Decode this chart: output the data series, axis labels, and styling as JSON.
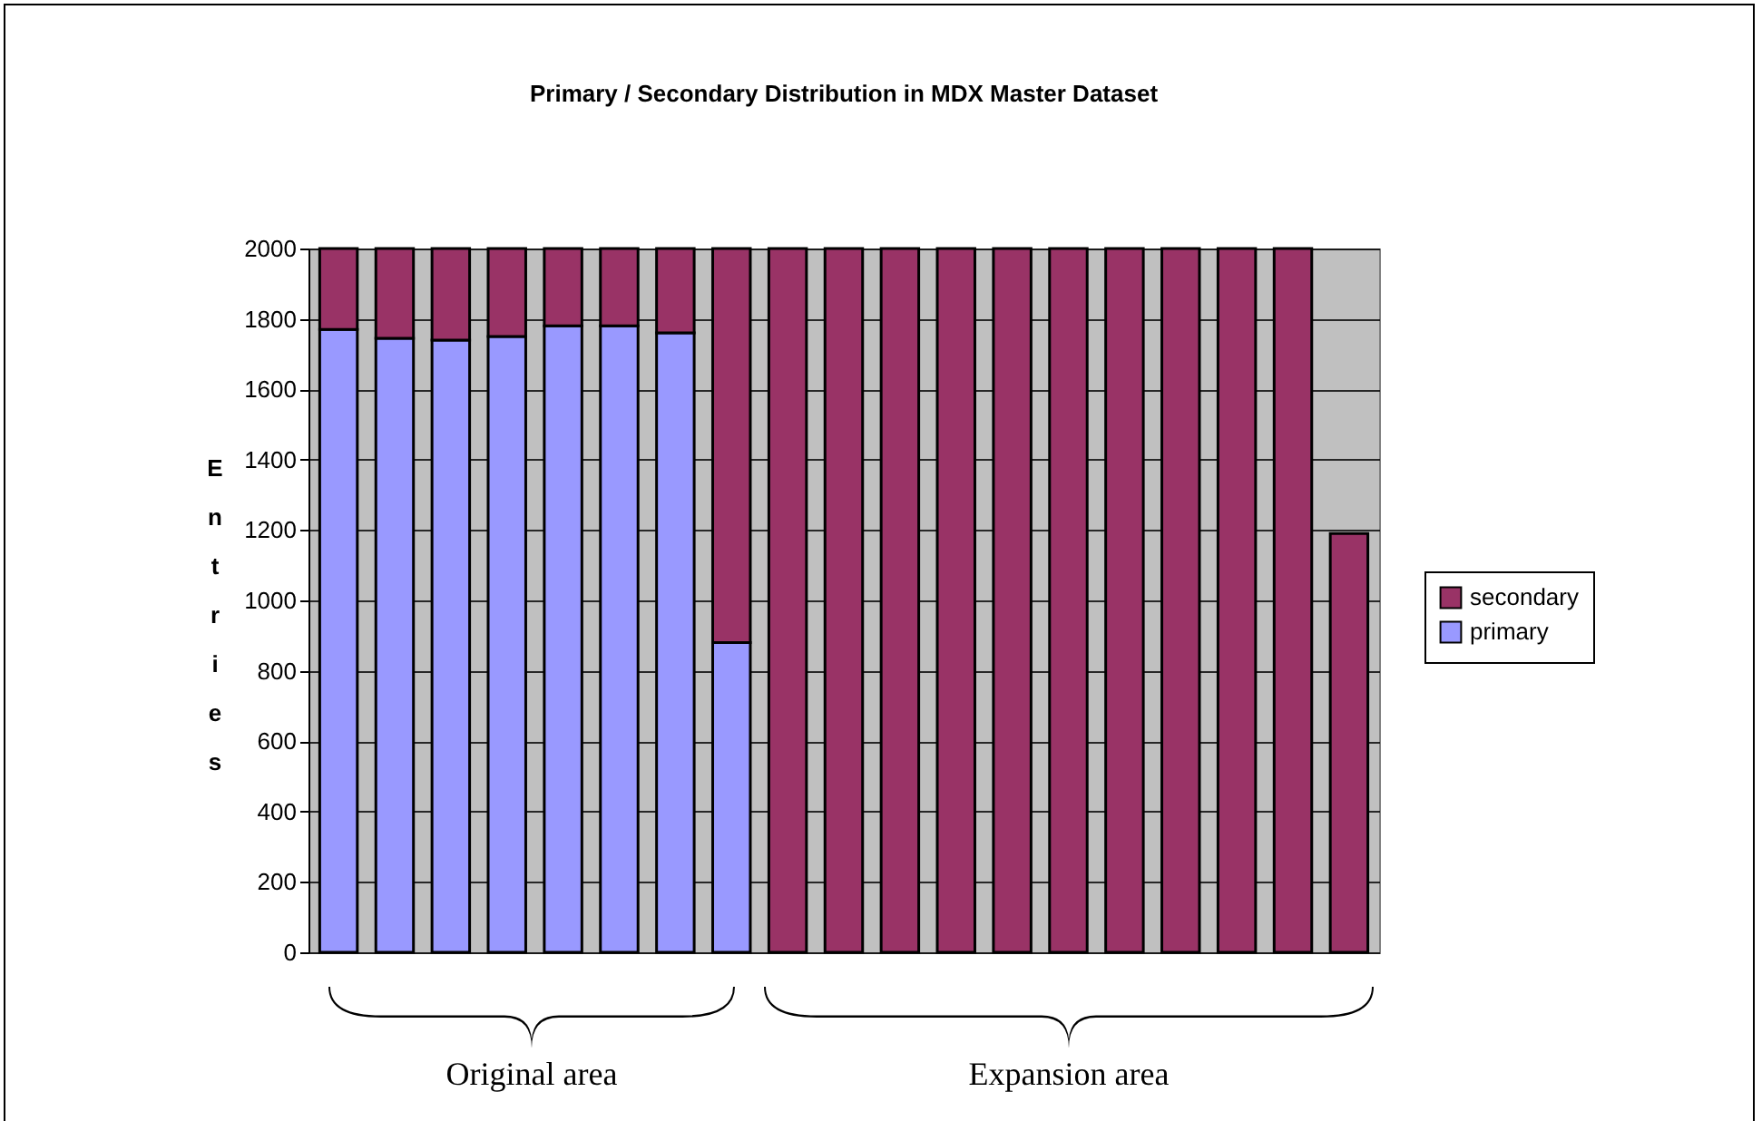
{
  "chart_data": {
    "type": "bar",
    "title": "Primary / Secondary Distribution in   MDX   Master Dataset",
    "ylabel": "Entries",
    "categories": [
      null,
      null,
      null,
      null,
      null,
      null,
      null,
      null,
      null,
      null,
      null,
      null,
      null,
      null,
      null,
      null,
      null,
      null,
      null
    ],
    "series": [
      {
        "name": "primary",
        "color": "#9999ff",
        "values": [
          1770,
          1745,
          1740,
          1750,
          1780,
          1780,
          1760,
          880,
          null,
          null,
          null,
          null,
          null,
          null,
          null,
          null,
          null,
          null,
          null
        ]
      },
      {
        "name": "secondary",
        "color": "#993366",
        "values": [
          230,
          255,
          260,
          250,
          220,
          220,
          240,
          1120,
          2000,
          2000,
          2000,
          2000,
          2000,
          2000,
          2000,
          2000,
          2000,
          2000,
          1190
        ]
      }
    ],
    "stacked": true,
    "ylim": [
      0,
      2000
    ],
    "yticks": [
      0,
      200,
      400,
      600,
      800,
      1000,
      1200,
      1400,
      1600,
      1800,
      2000
    ],
    "grid": "y",
    "legend": "right",
    "tick_labels": "y",
    "annotations": [
      "Original area",
      "Expansion area"
    ]
  }
}
